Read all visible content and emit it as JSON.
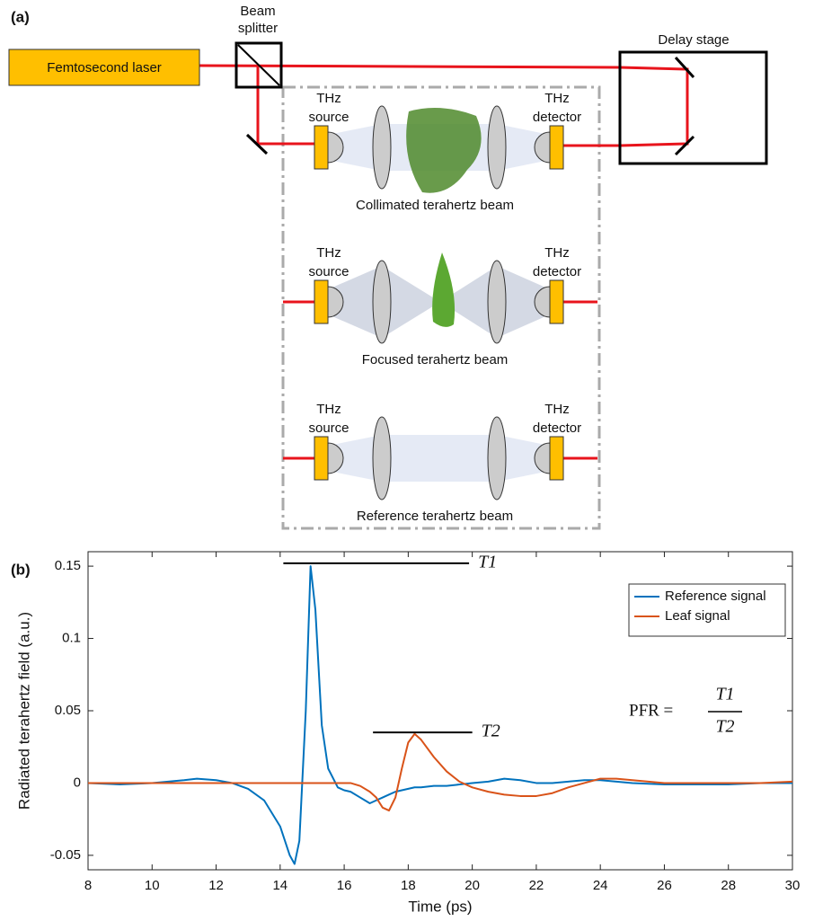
{
  "panel_labels": [
    "(a)",
    "(b)"
  ],
  "diagram": {
    "laser": "Femtosecond laser",
    "beam_splitter": [
      "Beam",
      "splitter"
    ],
    "delay_stage": "Delay stage",
    "panels": [
      {
        "source": [
          "THz",
          "source"
        ],
        "detector": [
          "THz",
          "detector"
        ],
        "caption": "Collimated terahertz beam"
      },
      {
        "source": [
          "THz",
          "source"
        ],
        "detector": [
          "THz",
          "detector"
        ],
        "caption": "Focused terahertz beam"
      },
      {
        "source": [
          "THz",
          "source"
        ],
        "detector": [
          "THz",
          "detector"
        ],
        "caption": "Reference terahertz beam"
      }
    ]
  },
  "chart_data": {
    "type": "line",
    "x_label": "Time (ps)",
    "y_label": "Radiated terahertz field (a.u.)",
    "x": [
      8,
      9,
      10,
      11,
      11.4,
      12,
      12.5,
      13,
      13.5,
      14,
      14.3,
      14.45,
      14.6,
      14.8,
      14.95,
      15.1,
      15.3,
      15.5,
      15.8,
      16,
      16.2,
      16.5,
      16.8,
      17,
      17.2,
      17.4,
      17.6,
      17.8,
      18,
      18.2,
      18.4,
      18.8,
      19.2,
      19.6,
      20,
      20.5,
      21,
      21.5,
      22,
      22.5,
      23,
      23.5,
      24,
      24.5,
      25,
      26,
      27,
      28,
      29,
      30
    ],
    "series": [
      {
        "name": "Reference signal",
        "color": "#0072bd",
        "values": [
          0,
          -0.001,
          0,
          0.002,
          0.003,
          0.002,
          0,
          -0.004,
          -0.012,
          -0.03,
          -0.05,
          -0.056,
          -0.04,
          0.05,
          0.15,
          0.12,
          0.04,
          0.01,
          -0.003,
          -0.005,
          -0.006,
          -0.01,
          -0.014,
          -0.012,
          -0.01,
          -0.008,
          -0.006,
          -0.005,
          -0.004,
          -0.003,
          -0.003,
          -0.002,
          -0.002,
          -0.001,
          0,
          0.001,
          0.003,
          0.002,
          0,
          0,
          0.001,
          0.002,
          0.002,
          0.001,
          0,
          -0.001,
          -0.001,
          -0.001,
          0,
          0
        ]
      },
      {
        "name": "Leaf signal",
        "color": "#d95319",
        "values": [
          0,
          0,
          0,
          0,
          0,
          0,
          0,
          0,
          0,
          0,
          0,
          0,
          0,
          0,
          0,
          0,
          0,
          0,
          0,
          0,
          0,
          -0.002,
          -0.006,
          -0.01,
          -0.017,
          -0.019,
          -0.01,
          0.01,
          0.028,
          0.034,
          0.03,
          0.018,
          0.008,
          0.001,
          -0.003,
          -0.006,
          -0.008,
          -0.009,
          -0.009,
          -0.007,
          -0.003,
          0,
          0.003,
          0.003,
          0.002,
          0,
          0,
          0,
          0,
          0.001
        ]
      }
    ],
    "xlim": [
      8,
      30
    ],
    "xticks": [
      8,
      10,
      12,
      14,
      16,
      18,
      20,
      22,
      24,
      26,
      28,
      30
    ],
    "ylim": [
      -0.06,
      0.16
    ],
    "yticks": [
      -0.05,
      0,
      0.05,
      0.1,
      0.15
    ],
    "legend": "top-right",
    "annotations": [
      {
        "label": "T1",
        "x0": 14.1,
        "x1": 19.9,
        "y": 0.152
      },
      {
        "label": "T2",
        "x0": 16.9,
        "x1": 20,
        "y": 0.035
      }
    ],
    "formula": {
      "lhs": "PFR =",
      "numerator": "T1",
      "denominator": "T2"
    }
  }
}
